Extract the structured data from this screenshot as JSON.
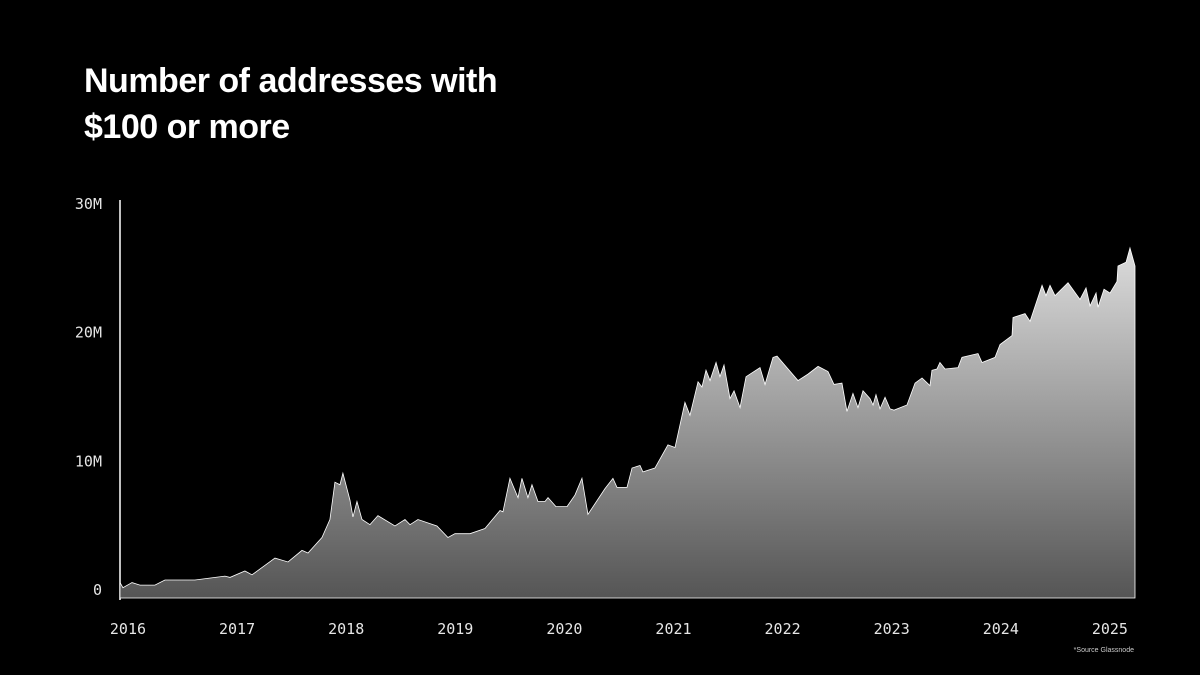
{
  "chart_data": {
    "type": "area",
    "title": "Number of addresses with $100 or more",
    "note": "*Source Glassnode",
    "color": "#dcdcdc",
    "x": [
      2015.927,
      2015.954,
      2016.037,
      2016.11,
      2016.247,
      2016.339,
      2016.614,
      2016.889,
      2016.935,
      2017.072,
      2017.137,
      2017.347,
      2017.467,
      2017.595,
      2017.65,
      2017.778,
      2017.851,
      2017.897,
      2017.943,
      2017.97,
      2018.035,
      2018.062,
      2018.099,
      2018.145,
      2018.218,
      2018.291,
      2018.447,
      2018.539,
      2018.585,
      2018.658,
      2018.832,
      2018.933,
      2018.997,
      2019.135,
      2019.272,
      2019.41,
      2019.437,
      2019.501,
      2019.575,
      2019.611,
      2019.666,
      2019.703,
      2019.758,
      2019.822,
      2019.85,
      2019.923,
      2020.024,
      2020.097,
      2020.161,
      2020.216,
      2020.372,
      2020.445,
      2020.482,
      2020.574,
      2020.62,
      2020.693,
      2020.72,
      2020.83,
      2020.949,
      2021.014,
      2021.105,
      2021.151,
      2021.225,
      2021.261,
      2021.298,
      2021.335,
      2021.39,
      2021.426,
      2021.463,
      2021.518,
      2021.555,
      2021.61,
      2021.665,
      2021.793,
      2021.839,
      2021.912,
      2021.949,
      2022.141,
      2022.233,
      2022.325,
      2022.416,
      2022.471,
      2022.544,
      2022.59,
      2022.645,
      2022.691,
      2022.737,
      2022.801,
      2022.829,
      2022.856,
      2022.893,
      2022.939,
      2022.985,
      2023.021,
      2023.14,
      2023.214,
      2023.278,
      2023.351,
      2023.369,
      2023.415,
      2023.442,
      2023.489,
      2023.608,
      2023.644,
      2023.791,
      2023.828,
      2023.947,
      2023.993,
      2024.103,
      2024.112,
      2024.222,
      2024.268,
      2024.378,
      2024.414,
      2024.451,
      2024.497,
      2024.616,
      2024.726,
      2024.781,
      2024.818,
      2024.873,
      2024.891,
      2024.946,
      2025.001,
      2025.065,
      2025.074,
      2025.148,
      2025.184,
      2025.23
    ],
    "values": [
      1.2,
      0.8,
      1.2,
      1.0,
      1.0,
      1.4,
      1.4,
      1.7,
      1.6,
      2.1,
      1.8,
      3.1,
      2.8,
      3.7,
      3.5,
      4.7,
      6.1,
      9.0,
      8.8,
      9.7,
      7.6,
      6.3,
      7.5,
      6.1,
      5.7,
      6.4,
      5.6,
      6.1,
      5.7,
      6.1,
      5.6,
      4.7,
      5.0,
      5.0,
      5.4,
      6.8,
      6.7,
      9.3,
      7.8,
      9.3,
      7.8,
      8.8,
      7.5,
      7.5,
      7.8,
      7.1,
      7.1,
      8.0,
      9.3,
      6.5,
      8.5,
      9.3,
      8.6,
      8.6,
      10.1,
      10.3,
      9.8,
      10.1,
      11.9,
      11.7,
      15.2,
      14.2,
      16.8,
      16.4,
      17.7,
      16.9,
      18.3,
      17.2,
      18.1,
      15.5,
      16.1,
      14.8,
      17.2,
      17.9,
      16.6,
      18.7,
      18.8,
      16.9,
      17.4,
      18.0,
      17.6,
      16.6,
      16.7,
      14.5,
      15.9,
      14.8,
      16.1,
      15.5,
      15.0,
      15.8,
      14.7,
      15.6,
      14.7,
      14.6,
      15.0,
      16.7,
      17.1,
      16.5,
      17.7,
      17.8,
      18.3,
      17.8,
      17.9,
      18.7,
      19.0,
      18.3,
      18.7,
      19.7,
      20.4,
      21.8,
      22.1,
      21.5,
      24.3,
      23.5,
      24.3,
      23.5,
      24.5,
      23.2,
      24.1,
      22.7,
      23.7,
      22.6,
      24.0,
      23.7,
      24.6,
      25.8,
      26.1,
      27.2,
      25.8
    ],
    "xlim": [
      2015.927,
      2025.23
    ],
    "xticks": [
      2016,
      2017,
      2018,
      2019,
      2020,
      2021,
      2022,
      2023,
      2024,
      2025
    ],
    "ylim": [
      0,
      30
    ],
    "yticks": [
      0,
      {
        "value": 10,
        "label": "10M"
      },
      {
        "value": 20,
        "label": "20M"
      },
      {
        "value": 30,
        "label": "30M"
      }
    ]
  }
}
